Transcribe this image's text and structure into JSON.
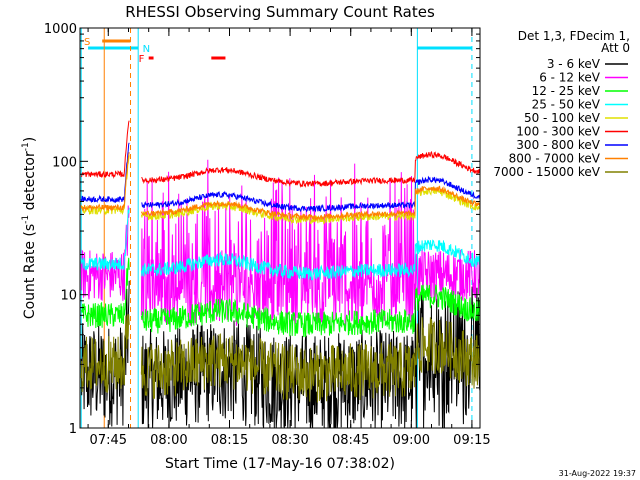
{
  "chart_data": {
    "type": "line",
    "title": "RHESSI Observing Summary Count Rates",
    "xlabel": "Start Time (17-May-16 07:38:02)",
    "ylabel_main": "Count Rate (s",
    "ylabel_sup1": "-1",
    "ylabel_mid": " detector",
    "ylabel_sup2": "-1",
    "ylabel_end": ")",
    "y_scale": "log",
    "ylim": [
      1,
      1000
    ],
    "xlim_min": [
      458,
      557
    ],
    "x_ticks": [
      {
        "min": 465,
        "label": "07:45"
      },
      {
        "min": 480,
        "label": "08:00"
      },
      {
        "min": 495,
        "label": "08:15"
      },
      {
        "min": 510,
        "label": "08:30"
      },
      {
        "min": 525,
        "label": "08:45"
      },
      {
        "min": 540,
        "label": "09:00"
      },
      {
        "min": 555,
        "label": "09:15"
      }
    ],
    "y_ticks": [
      {
        "value": 1,
        "label": "1"
      },
      {
        "value": 10,
        "label": "10"
      },
      {
        "value": 100,
        "label": "100"
      },
      {
        "value": 1000,
        "label": "1000"
      }
    ],
    "legend_header": [
      "Det 1,3, FDecim 1,",
      "Att 0"
    ],
    "timestamp": "31-Aug-2022 19:37",
    "flags": [
      {
        "label": "S",
        "color": "#ff8000"
      },
      {
        "label": "N",
        "color": "#00e0ff"
      },
      {
        "label": "F",
        "color": "#ff0000"
      }
    ],
    "series": [
      {
        "name": "3 - 6 keV",
        "color": "#000000"
      },
      {
        "name": "6 - 12 keV",
        "color": "#ff00ff"
      },
      {
        "name": "12 - 25 keV",
        "color": "#00ff00"
      },
      {
        "name": "25 - 50 keV",
        "color": "#00ffff"
      },
      {
        "name": "50 - 100 keV",
        "color": "#e0e000"
      },
      {
        "name": "100 - 300 keV",
        "color": "#ff0000"
      },
      {
        "name": "300 - 800 keV",
        "color": "#0000ff"
      },
      {
        "name": "800 - 7000 keV",
        "color": "#ff8000"
      },
      {
        "name": "7000 - 15000 keV",
        "color": "#808000"
      }
    ]
  }
}
